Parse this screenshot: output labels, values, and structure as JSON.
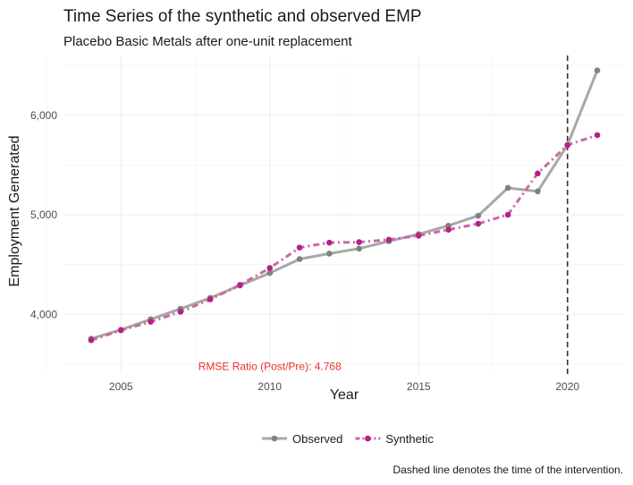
{
  "chart_data": {
    "type": "line",
    "title": "Time Series of the synthetic and observed EMP",
    "subtitle": "Placebo Basic Metals after one-unit replacement",
    "xlabel": "Year",
    "ylabel": "Employment Generated",
    "xlim": [
      2003.1,
      2021.9
    ],
    "ylim": [
      3400,
      6600
    ],
    "x_ticks": [
      2005,
      2010,
      2015,
      2020
    ],
    "x_tick_labels": [
      "2005",
      "2010",
      "2015",
      "2020"
    ],
    "y_ticks": [
      4000,
      5000,
      6000
    ],
    "y_tick_labels": [
      "4,000",
      "5,000",
      "6,000"
    ],
    "grid": true,
    "legend_position": "bottom",
    "x": [
      2004,
      2005,
      2006,
      2007,
      2008,
      2009,
      2010,
      2011,
      2012,
      2013,
      2014,
      2015,
      2016,
      2017,
      2018,
      2019,
      2020,
      2021
    ],
    "series": [
      {
        "name": "Observed",
        "color": "#a8a8a8",
        "point_color": "#808080",
        "style": "solid",
        "values": [
          3755,
          3845,
          3950,
          4055,
          4165,
          4290,
          4415,
          4555,
          4610,
          4660,
          4735,
          4805,
          4890,
          4990,
          5270,
          5235,
          5700,
          6450
        ]
      },
      {
        "name": "Synthetic",
        "color": "#c76aa5",
        "point_color": "#b5208a",
        "style": "dashdot",
        "values": [
          3740,
          3840,
          3925,
          4025,
          4150,
          4295,
          4465,
          4670,
          4720,
          4725,
          4750,
          4790,
          4850,
          4910,
          5000,
          5415,
          5700,
          5800
        ]
      }
    ],
    "intervention": {
      "x": 2020,
      "style": "dashed",
      "color": "#333333"
    },
    "annotations": [
      {
        "text": "RMSE Ratio (Post/Pre): 4.768",
        "x": 2010,
        "y": 3440,
        "color": "#e8312a"
      }
    ],
    "caption": "Dashed line denotes the time of the intervention."
  }
}
